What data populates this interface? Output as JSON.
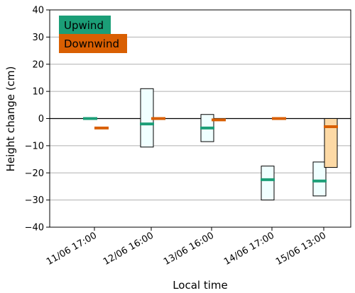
{
  "chart_data": {
    "type": "box",
    "xlabel": "Local time",
    "ylabel": "Height change (cm)",
    "ylim": [
      -40,
      40
    ],
    "yticks": [
      -40,
      -30,
      -20,
      -10,
      0,
      10,
      20,
      30,
      40
    ],
    "categories": [
      "11/06 17:00",
      "12/06 16:00",
      "13/06 16:00",
      "14/06 17:00",
      "15/06 13:00"
    ],
    "grid": "horizontal",
    "zero_line": true,
    "legend": {
      "placement": "top-left"
    },
    "series": [
      {
        "name": "Upwind",
        "color": "#1b9e77",
        "box_fill": "#f0ffff",
        "boxes": [
          {
            "median": 0,
            "low": null,
            "high": null
          },
          {
            "median": -2,
            "low": -10.5,
            "high": 11
          },
          {
            "median": -3.5,
            "low": -8.5,
            "high": 1.5
          },
          {
            "median": -22.5,
            "low": -30,
            "high": -17.5
          },
          {
            "median": -23,
            "low": -28.5,
            "high": -16
          }
        ]
      },
      {
        "name": "Downwind",
        "color": "#d95f02",
        "box_fill": "#fdd9a5",
        "boxes": [
          {
            "median": -3.5,
            "low": null,
            "high": null
          },
          {
            "median": 0,
            "low": null,
            "high": null
          },
          {
            "median": -0.5,
            "low": null,
            "high": null
          },
          {
            "median": 0,
            "low": null,
            "high": null
          },
          {
            "median": -3,
            "low": -18,
            "high": 0
          }
        ]
      }
    ]
  }
}
